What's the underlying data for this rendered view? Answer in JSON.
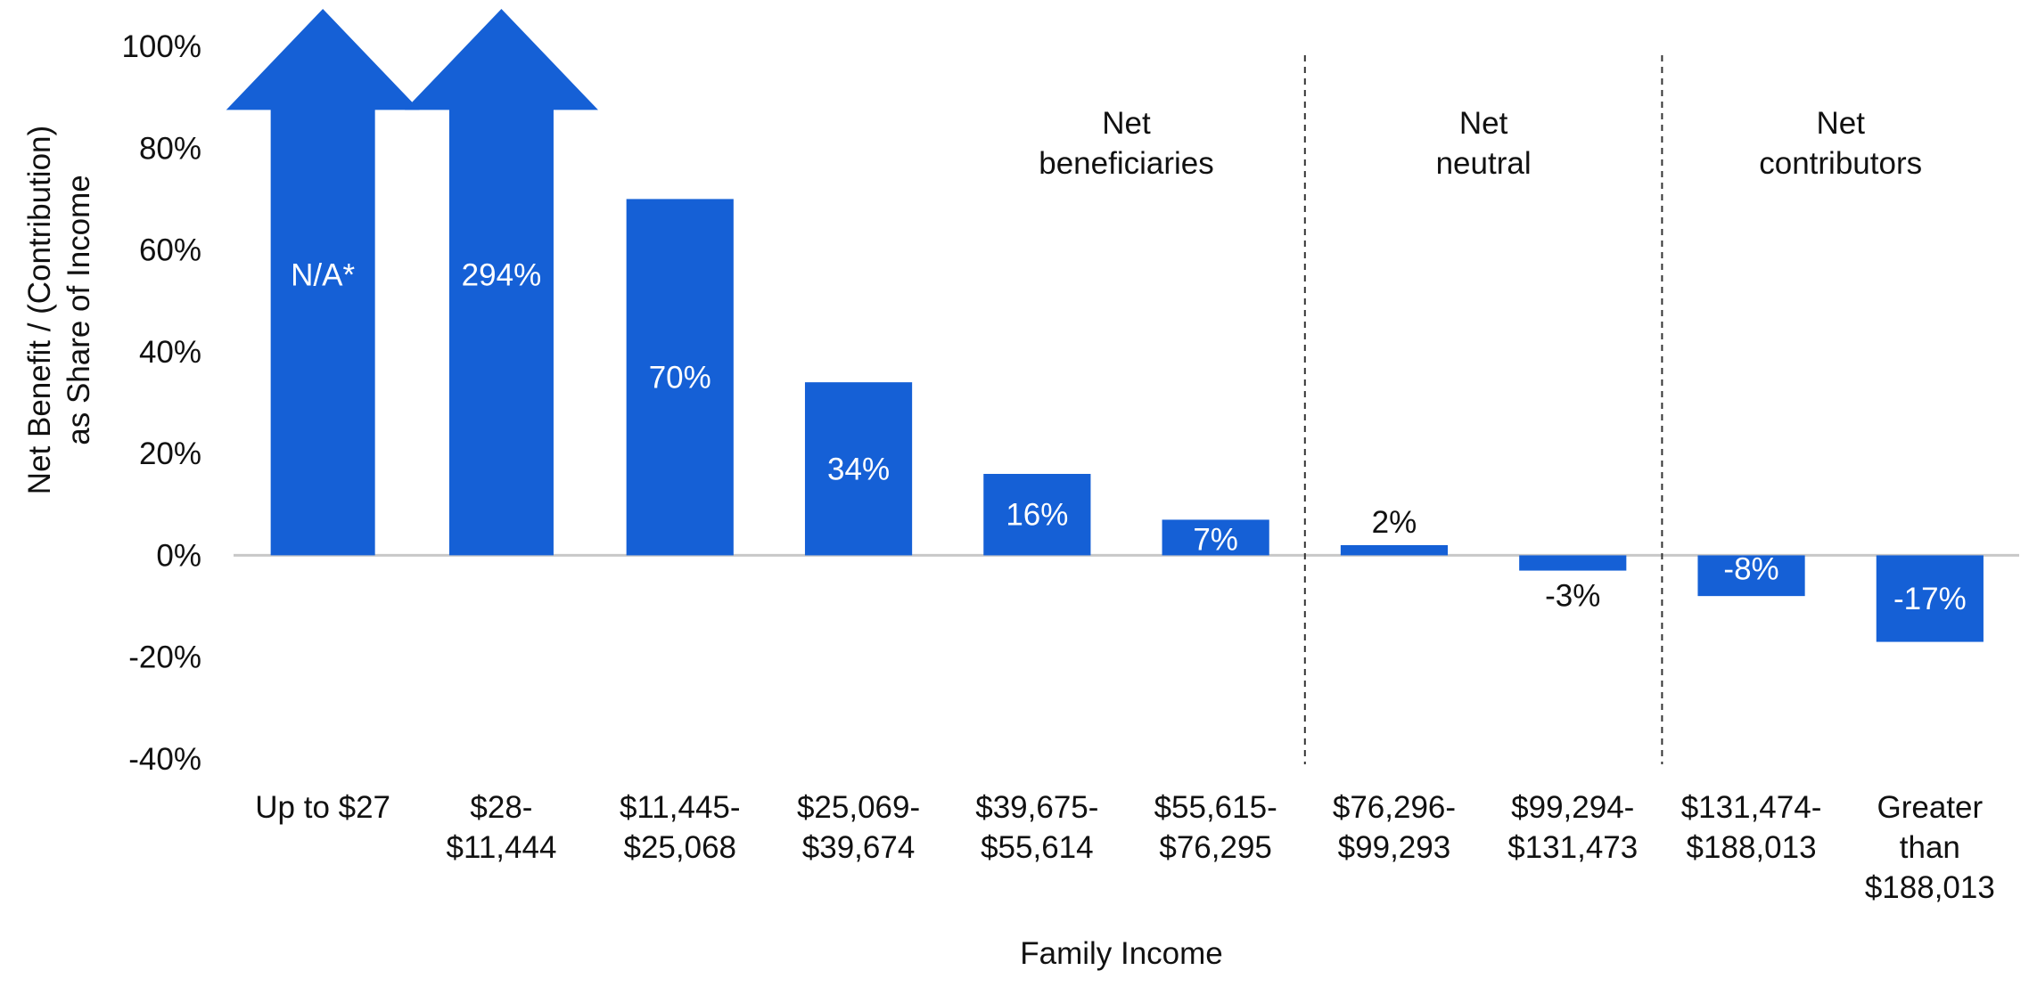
{
  "chart_data": {
    "type": "bar",
    "xlabel": "Family Income",
    "ylabel_lines": [
      "Net Benefit / (Contribution)",
      "as Share of Income"
    ],
    "ylim": [
      -40,
      100
    ],
    "y_ticks": [
      -40,
      -20,
      0,
      20,
      40,
      60,
      80,
      100
    ],
    "y_tick_format": "percent",
    "gridlines": false,
    "categories": [
      [
        "Up to $27"
      ],
      [
        "$28-",
        "$11,444"
      ],
      [
        "$11,445-",
        "$25,068"
      ],
      [
        "$25,069-",
        "$39,674"
      ],
      [
        "$39,675-",
        "$55,614"
      ],
      [
        "$55,615-",
        "$76,295"
      ],
      [
        "$76,296-",
        "$99,293"
      ],
      [
        "$99,294-",
        "$131,473"
      ],
      [
        "$131,474-",
        "$188,013"
      ],
      [
        "Greater",
        "than",
        "$188,013"
      ]
    ],
    "values": [
      null,
      294,
      70,
      34,
      16,
      7,
      2,
      -3,
      -8,
      -17
    ],
    "value_labels": [
      "N/A*",
      "294%",
      "70%",
      "34%",
      "16%",
      "7%",
      "2%",
      "-3%",
      "-8%",
      "-17%"
    ],
    "off_scale_arrows": [
      0,
      1
    ],
    "groups": [
      {
        "label_lines": [
          "Net",
          "beneficiaries"
        ],
        "from": 0,
        "to": 5
      },
      {
        "label_lines": [
          "Net",
          "neutral"
        ],
        "from": 6,
        "to": 7
      },
      {
        "label_lines": [
          "Net",
          "contributors"
        ],
        "from": 8,
        "to": 9
      }
    ],
    "group_dividers_after": [
      5,
      7
    ],
    "colors": {
      "bar": "#1560d6",
      "axis": "#c8c8c8",
      "text": "#111111",
      "label_on_bar": "#ffffff"
    }
  }
}
